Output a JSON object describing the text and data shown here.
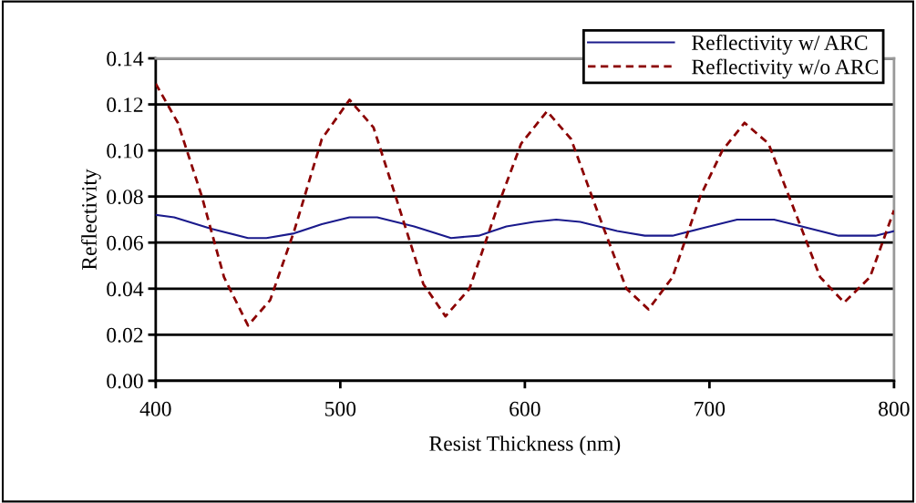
{
  "chart_data": {
    "type": "line",
    "xlabel": "Resist Thickness (nm)",
    "ylabel": "Reflectivity",
    "xlim": [
      400,
      800
    ],
    "xticks": [
      400,
      500,
      600,
      700,
      800
    ],
    "ylim": [
      0,
      0.14
    ],
    "yticks": [
      {
        "value": 0,
        "label": "0.00"
      },
      {
        "value": 0.02,
        "label": "0.02"
      },
      {
        "value": 0.04,
        "label": "0.04"
      },
      {
        "value": 0.06,
        "label": "0.06"
      },
      {
        "value": 0.08,
        "label": "0.08"
      },
      {
        "value": 0.1,
        "label": "0.10"
      },
      {
        "value": 0.12,
        "label": "0.12"
      },
      {
        "value": 0.14,
        "label": "0.14"
      }
    ],
    "grid": "y",
    "legend": "top right",
    "series": [
      {
        "name": "Reflectivity w/ ARC",
        "color": "#1a1a8c",
        "line_style": "solid",
        "x": [
          400,
          410,
          430,
          450,
          460,
          475,
          490,
          505,
          520,
          540,
          560,
          575,
          590,
          605,
          617,
          630,
          650,
          665,
          680,
          695,
          715,
          735,
          750,
          770,
          790,
          800
        ],
        "values": [
          0.072,
          0.071,
          0.066,
          0.062,
          0.062,
          0.064,
          0.068,
          0.071,
          0.071,
          0.067,
          0.062,
          0.063,
          0.067,
          0.069,
          0.07,
          0.069,
          0.065,
          0.063,
          0.063,
          0.066,
          0.07,
          0.07,
          0.067,
          0.063,
          0.063,
          0.065
        ]
      },
      {
        "name": "Reflectivity w/o ARC",
        "color": "#8b0000",
        "line_style": "dashed",
        "x": [
          400,
          412,
          425,
          437,
          450,
          462,
          475,
          490,
          505,
          518,
          530,
          545,
          557,
          570,
          585,
          598,
          612,
          625,
          640,
          655,
          667,
          680,
          695,
          707,
          719,
          732,
          748,
          760,
          773,
          787,
          800
        ],
        "values": [
          0.129,
          0.112,
          0.08,
          0.045,
          0.024,
          0.035,
          0.065,
          0.105,
          0.122,
          0.11,
          0.08,
          0.042,
          0.028,
          0.04,
          0.075,
          0.103,
          0.117,
          0.105,
          0.072,
          0.04,
          0.031,
          0.045,
          0.08,
          0.1,
          0.112,
          0.103,
          0.07,
          0.045,
          0.034,
          0.045,
          0.074
        ]
      }
    ]
  }
}
